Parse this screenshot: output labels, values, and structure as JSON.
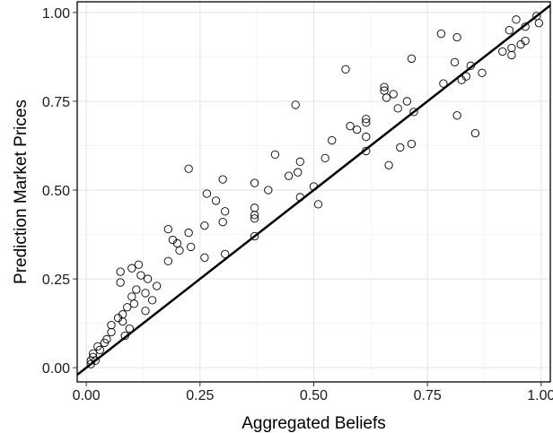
{
  "chart_data": {
    "type": "scatter",
    "xlabel": "Aggregated Beliefs",
    "ylabel": "Prediction Market Prices",
    "xlim": [
      -0.02,
      1.02
    ],
    "ylim": [
      -0.04,
      1.03
    ],
    "x_ticks": [
      0.0,
      0.25,
      0.5,
      0.75,
      1.0
    ],
    "y_ticks": [
      0.0,
      0.25,
      0.5,
      0.75,
      1.0
    ],
    "x_tick_labels": [
      "0.00",
      "0.25",
      "0.50",
      "0.75",
      "1.00"
    ],
    "y_tick_labels": [
      "0.00",
      "0.25",
      "0.50",
      "0.75",
      "1.00"
    ],
    "grid": true,
    "reference_line": {
      "type": "identity",
      "from": -0.02,
      "to": 1.02
    },
    "points": [
      {
        "x": 0.01,
        "y": 0.01
      },
      {
        "x": 0.01,
        "y": 0.02
      },
      {
        "x": 0.015,
        "y": 0.03
      },
      {
        "x": 0.015,
        "y": 0.04
      },
      {
        "x": 0.02,
        "y": 0.02
      },
      {
        "x": 0.025,
        "y": 0.06
      },
      {
        "x": 0.03,
        "y": 0.05
      },
      {
        "x": 0.04,
        "y": 0.07
      },
      {
        "x": 0.045,
        "y": 0.08
      },
      {
        "x": 0.055,
        "y": 0.1
      },
      {
        "x": 0.055,
        "y": 0.12
      },
      {
        "x": 0.07,
        "y": 0.14
      },
      {
        "x": 0.075,
        "y": 0.27
      },
      {
        "x": 0.075,
        "y": 0.24
      },
      {
        "x": 0.08,
        "y": 0.15
      },
      {
        "x": 0.08,
        "y": 0.13
      },
      {
        "x": 0.085,
        "y": 0.09
      },
      {
        "x": 0.09,
        "y": 0.17
      },
      {
        "x": 0.095,
        "y": 0.11
      },
      {
        "x": 0.1,
        "y": 0.2
      },
      {
        "x": 0.1,
        "y": 0.28
      },
      {
        "x": 0.105,
        "y": 0.18
      },
      {
        "x": 0.11,
        "y": 0.22
      },
      {
        "x": 0.115,
        "y": 0.29
      },
      {
        "x": 0.12,
        "y": 0.26
      },
      {
        "x": 0.13,
        "y": 0.21
      },
      {
        "x": 0.13,
        "y": 0.16
      },
      {
        "x": 0.135,
        "y": 0.25
      },
      {
        "x": 0.145,
        "y": 0.19
      },
      {
        "x": 0.155,
        "y": 0.23
      },
      {
        "x": 0.18,
        "y": 0.39
      },
      {
        "x": 0.18,
        "y": 0.3
      },
      {
        "x": 0.19,
        "y": 0.36
      },
      {
        "x": 0.2,
        "y": 0.35
      },
      {
        "x": 0.205,
        "y": 0.33
      },
      {
        "x": 0.225,
        "y": 0.56
      },
      {
        "x": 0.225,
        "y": 0.38
      },
      {
        "x": 0.23,
        "y": 0.34
      },
      {
        "x": 0.26,
        "y": 0.4
      },
      {
        "x": 0.26,
        "y": 0.31
      },
      {
        "x": 0.265,
        "y": 0.49
      },
      {
        "x": 0.285,
        "y": 0.47
      },
      {
        "x": 0.3,
        "y": 0.53
      },
      {
        "x": 0.3,
        "y": 0.41
      },
      {
        "x": 0.305,
        "y": 0.44
      },
      {
        "x": 0.305,
        "y": 0.32
      },
      {
        "x": 0.37,
        "y": 0.52
      },
      {
        "x": 0.37,
        "y": 0.45
      },
      {
        "x": 0.37,
        "y": 0.43
      },
      {
        "x": 0.37,
        "y": 0.42
      },
      {
        "x": 0.37,
        "y": 0.37
      },
      {
        "x": 0.4,
        "y": 0.5
      },
      {
        "x": 0.415,
        "y": 0.6
      },
      {
        "x": 0.445,
        "y": 0.54
      },
      {
        "x": 0.46,
        "y": 0.74
      },
      {
        "x": 0.465,
        "y": 0.55
      },
      {
        "x": 0.47,
        "y": 0.58
      },
      {
        "x": 0.47,
        "y": 0.48
      },
      {
        "x": 0.5,
        "y": 0.51
      },
      {
        "x": 0.51,
        "y": 0.46
      },
      {
        "x": 0.525,
        "y": 0.59
      },
      {
        "x": 0.54,
        "y": 0.64
      },
      {
        "x": 0.57,
        "y": 0.84
      },
      {
        "x": 0.58,
        "y": 0.68
      },
      {
        "x": 0.595,
        "y": 0.67
      },
      {
        "x": 0.615,
        "y": 0.7
      },
      {
        "x": 0.615,
        "y": 0.69
      },
      {
        "x": 0.615,
        "y": 0.65
      },
      {
        "x": 0.615,
        "y": 0.61
      },
      {
        "x": 0.655,
        "y": 0.79
      },
      {
        "x": 0.655,
        "y": 0.78
      },
      {
        "x": 0.66,
        "y": 0.76
      },
      {
        "x": 0.665,
        "y": 0.57
      },
      {
        "x": 0.675,
        "y": 0.77
      },
      {
        "x": 0.685,
        "y": 0.73
      },
      {
        "x": 0.69,
        "y": 0.62
      },
      {
        "x": 0.705,
        "y": 0.75
      },
      {
        "x": 0.715,
        "y": 0.87
      },
      {
        "x": 0.715,
        "y": 0.63
      },
      {
        "x": 0.72,
        "y": 0.72
      },
      {
        "x": 0.78,
        "y": 0.94
      },
      {
        "x": 0.785,
        "y": 0.8
      },
      {
        "x": 0.81,
        "y": 0.86
      },
      {
        "x": 0.815,
        "y": 0.93
      },
      {
        "x": 0.815,
        "y": 0.71
      },
      {
        "x": 0.825,
        "y": 0.81
      },
      {
        "x": 0.835,
        "y": 0.82
      },
      {
        "x": 0.845,
        "y": 0.85
      },
      {
        "x": 0.855,
        "y": 0.66
      },
      {
        "x": 0.87,
        "y": 0.83
      },
      {
        "x": 0.915,
        "y": 0.89
      },
      {
        "x": 0.93,
        "y": 0.95
      },
      {
        "x": 0.935,
        "y": 0.9
      },
      {
        "x": 0.935,
        "y": 0.88
      },
      {
        "x": 0.945,
        "y": 0.98
      },
      {
        "x": 0.955,
        "y": 0.91
      },
      {
        "x": 0.965,
        "y": 0.96
      },
      {
        "x": 0.965,
        "y": 0.92
      },
      {
        "x": 0.99,
        "y": 0.99
      },
      {
        "x": 0.995,
        "y": 0.97
      }
    ]
  }
}
